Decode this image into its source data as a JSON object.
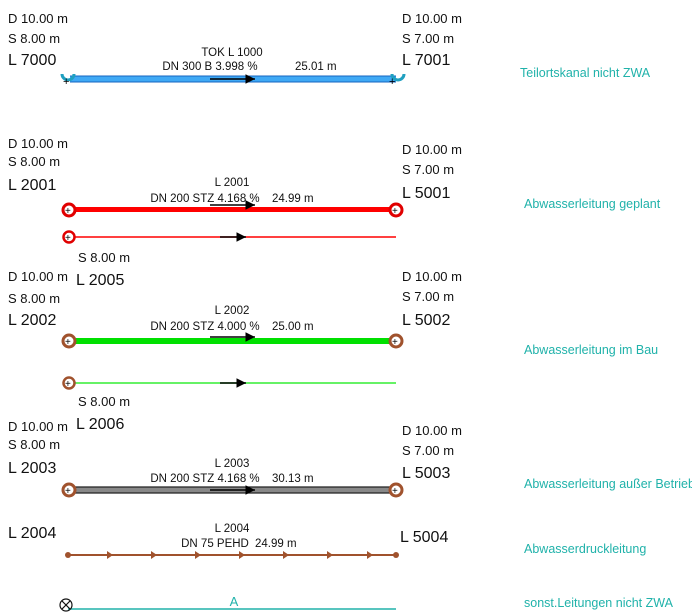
{
  "colors": {
    "teilort": "#3fa9f5",
    "geplant": "#ff0000",
    "im_bau": "#00e000",
    "ausser_betrieb": "#777777",
    "druck": "#a0522d",
    "sonst": "#20b2aa",
    "legend_text": "#20b2aa",
    "manhole": "#a0522d"
  },
  "teilortskanal": {
    "left": {
      "d": "D 10.00 m",
      "s": "S 8.00 m",
      "id": "L 7000"
    },
    "right": {
      "d": "D 10.00 m",
      "s": "S 7.00 m",
      "id": "L 7001"
    },
    "title": "TOK L 1000",
    "spec": "DN 300  B 3.998 %",
    "length": "25.01 m",
    "legend": "Teilortskanal nicht ZWA"
  },
  "geplant": {
    "left": {
      "d": "D 10.00 m",
      "s": "S 8.00 m",
      "id": "L 2001"
    },
    "right": {
      "d": "D 10.00 m",
      "s": "S 7.00 m",
      "id": "L 5001"
    },
    "title": "L 2001",
    "spec": "DN 200  STZ 4.168 %",
    "length": "24.99 m",
    "legend": "Abwasserleitung geplant",
    "branch": {
      "s": "S 8.00 m",
      "id": "L 2005"
    }
  },
  "im_bau": {
    "left": {
      "d": "D 10.00 m",
      "s": "S 8.00 m",
      "id": "L 2002"
    },
    "right": {
      "d": "D 10.00 m",
      "s": "S 7.00 m",
      "id": "L 5002"
    },
    "title": "L 2002",
    "spec": "DN 200  STZ 4.000 %",
    "length": "25.00 m",
    "legend": "Abwasserleitung im Bau",
    "branch": {
      "s": "S 8.00 m",
      "id": "L 2006"
    }
  },
  "ausser_betrieb": {
    "left": {
      "d": "D 10.00 m",
      "s": "S 8.00 m",
      "id": "L 2003"
    },
    "right": {
      "d": "D 10.00 m",
      "s": "S 7.00 m",
      "id": "L 5003"
    },
    "title": "L 2003",
    "spec": "DN 200  STZ 4.168 %",
    "length": "30.13 m",
    "legend": "Abwasserleitung außer Betrieb"
  },
  "druck": {
    "left": {
      "id": "L 2004"
    },
    "right": {
      "id": "L 5004"
    },
    "title": "L 2004",
    "spec": "DN 75  PEHD",
    "length": "24.99 m",
    "legend": "Abwasserdruckleitung"
  },
  "sonst": {
    "label": "A",
    "legend": "sonst.Leitungen nicht ZWA"
  }
}
